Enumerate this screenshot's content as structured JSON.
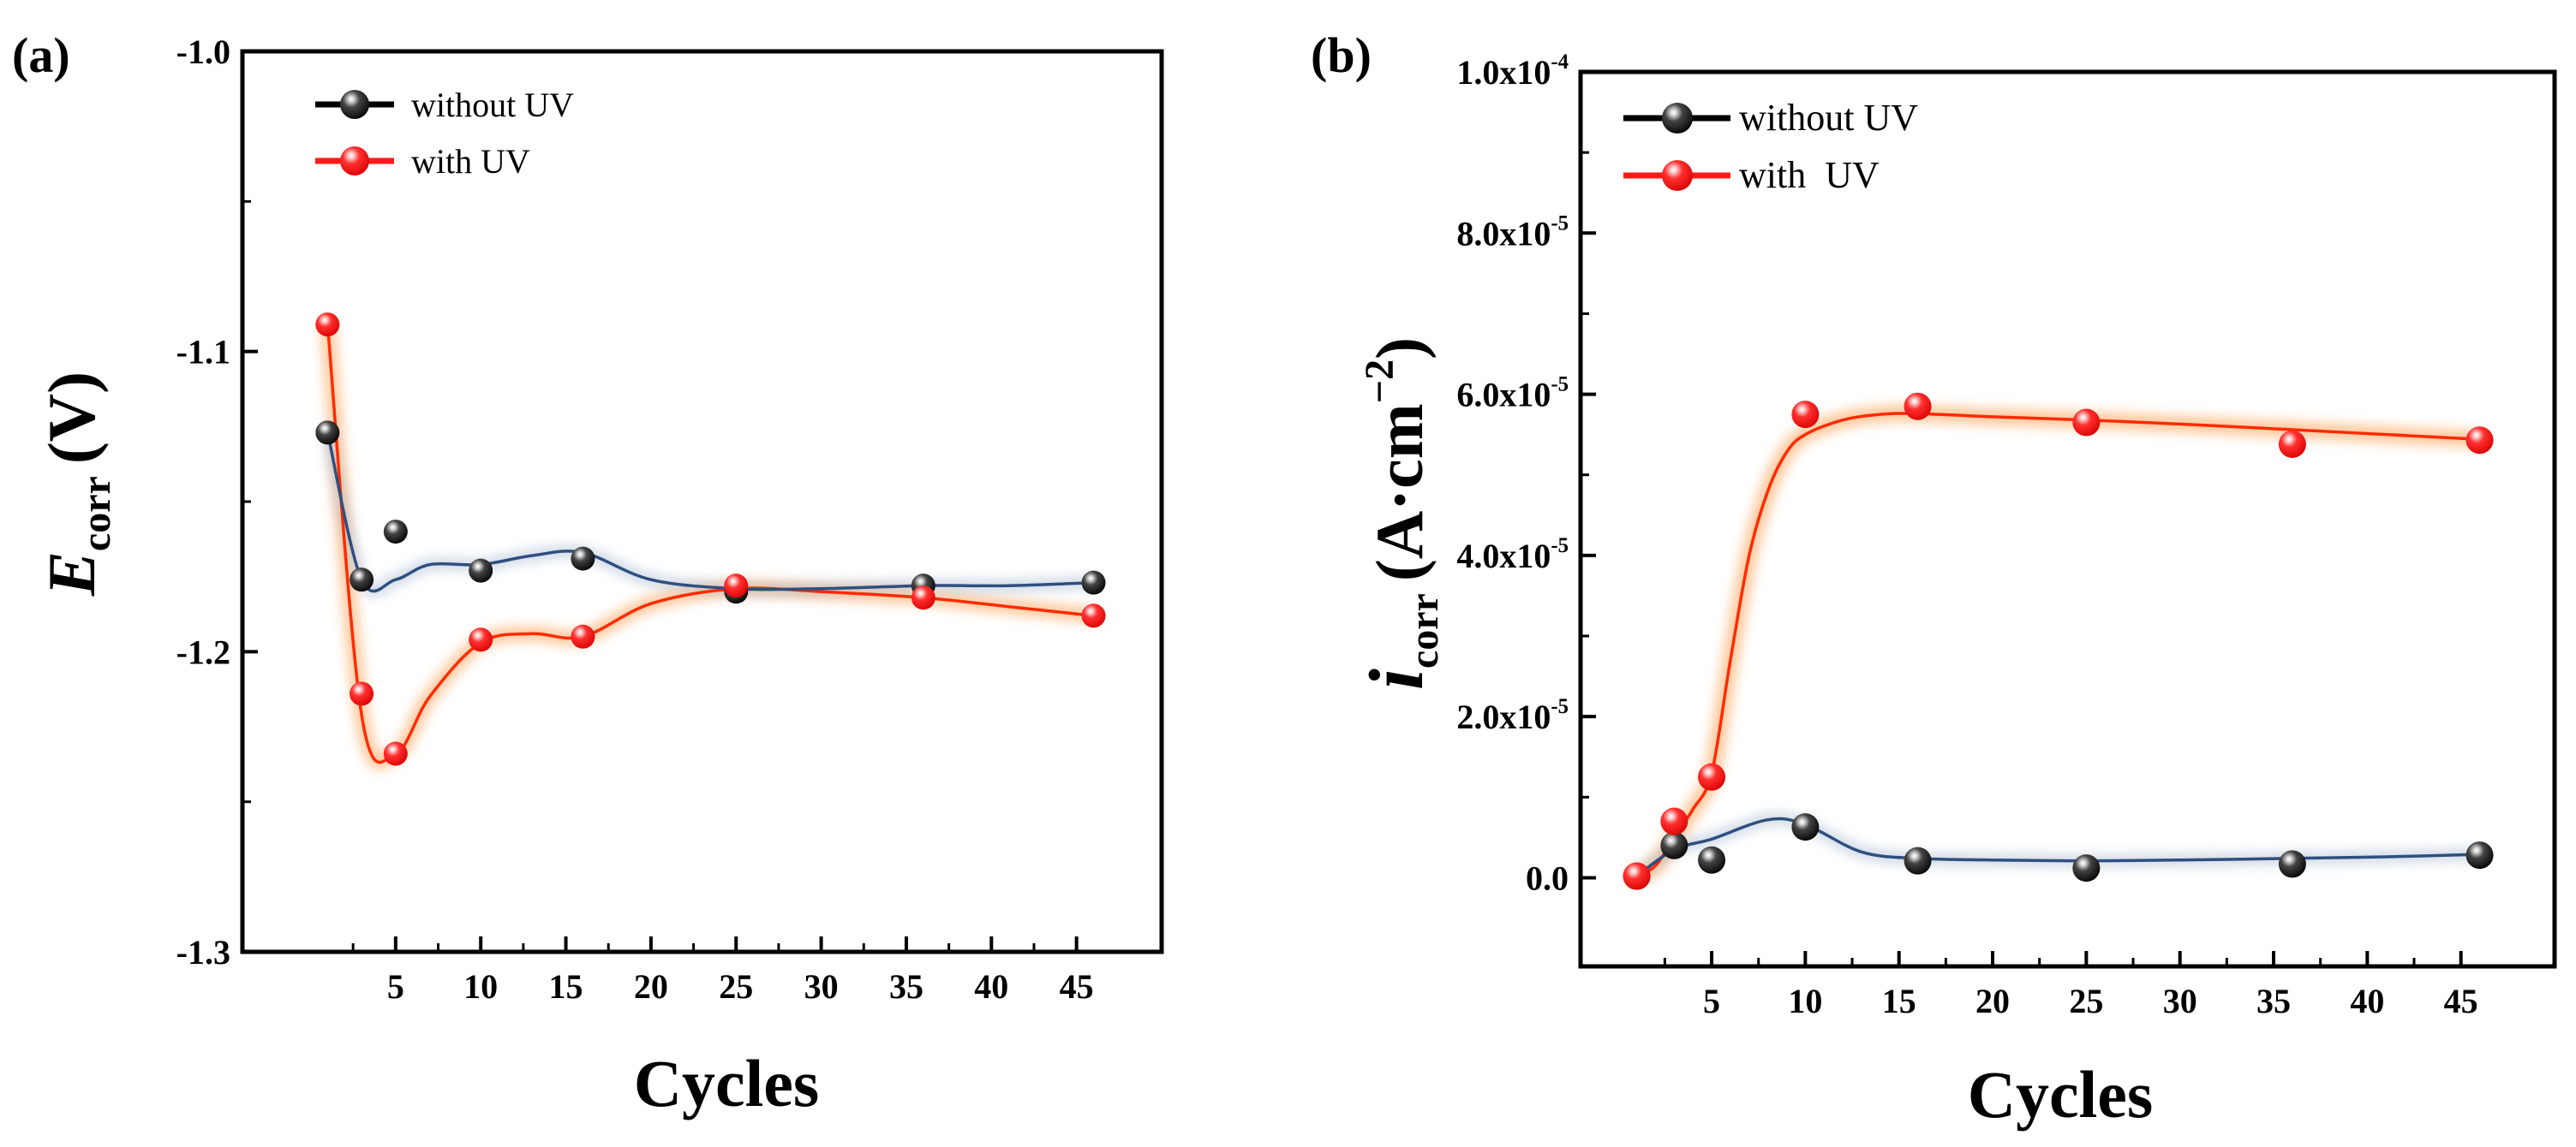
{
  "colors": {
    "without": "#000000",
    "with": "#ff1a1a",
    "fit_without": "#2f4f7f",
    "fit_with": "#ff2a00",
    "glow": "#ffb070"
  },
  "chart_data": [
    {
      "type": "line",
      "panel_label": "(a)",
      "title": "",
      "ylabel_main": "E",
      "ylabel_sub": "corr",
      "ylabel_unit": "(V)",
      "xlabel": "Cycles",
      "xlim": [
        -4,
        50
      ],
      "ylim": [
        -1.3,
        -1.0
      ],
      "x_ticks": [
        5,
        10,
        15,
        20,
        25,
        30,
        35,
        40,
        45
      ],
      "x_tick_labels": [
        "5",
        "10",
        "15",
        "20",
        "25",
        "30",
        "35",
        "40",
        "45"
      ],
      "y_ticks": [
        -1.3,
        -1.2,
        -1.1,
        -1.0
      ],
      "y_tick_labels": [
        "-1.3",
        "-1.2",
        "-1.1",
        "-1.0"
      ],
      "legend_position": "top-left",
      "series": [
        {
          "name": "without UV",
          "x": [
            1,
            3,
            5,
            10,
            16,
            25,
            36,
            46
          ],
          "values": [
            -1.127,
            -1.176,
            -1.16,
            -1.173,
            -1.169,
            -1.18,
            -1.178,
            -1.177
          ],
          "fit_x": [
            1,
            3,
            5,
            7,
            10,
            13,
            16,
            20,
            25,
            30,
            36,
            41,
            46
          ],
          "fit_values": [
            -1.127,
            -1.176,
            -1.176,
            -1.171,
            -1.171,
            -1.168,
            -1.167,
            -1.176,
            -1.179,
            -1.179,
            -1.178,
            -1.178,
            -1.177
          ]
        },
        {
          "name": "with UV",
          "x": [
            1,
            3,
            5,
            10,
            16,
            25,
            36,
            46
          ],
          "values": [
            -1.091,
            -1.214,
            -1.234,
            -1.196,
            -1.195,
            -1.178,
            -1.182,
            -1.188
          ],
          "fit_x": [
            1,
            3,
            5,
            7,
            10,
            13,
            16,
            20,
            25,
            30,
            36,
            41,
            46
          ],
          "fit_values": [
            -1.091,
            -1.221,
            -1.234,
            -1.215,
            -1.197,
            -1.194,
            -1.195,
            -1.184,
            -1.179,
            -1.18,
            -1.182,
            -1.185,
            -1.188
          ]
        }
      ]
    },
    {
      "type": "line",
      "panel_label": "(b)",
      "title": "",
      "ylabel_main": "i",
      "ylabel_sub": "corr",
      "ylabel_unit": "(A·cm",
      "ylabel_exp": "−2",
      "ylabel_close": ")",
      "xlabel": "Cycles",
      "xlim": [
        -2,
        50
      ],
      "ylim": [
        -1.1e-05,
        0.0001
      ],
      "x_ticks": [
        5,
        10,
        15,
        20,
        25,
        30,
        35,
        40,
        45
      ],
      "x_tick_labels": [
        "5",
        "10",
        "15",
        "20",
        "25",
        "30",
        "35",
        "40",
        "45"
      ],
      "y_ticks": [
        0,
        2e-05,
        4e-05,
        6e-05,
        8e-05,
        0.0001
      ],
      "y_tick_mantissa": [
        "0.0",
        "2.0x10",
        "4.0x10",
        "6.0x10",
        "8.0x10",
        "1.0x10"
      ],
      "y_tick_exponent": [
        "",
        "-5",
        "-5",
        "-5",
        "-5",
        "-4"
      ],
      "legend_position": "top-left",
      "series": [
        {
          "name": "without UV",
          "x": [
            1,
            3,
            5,
            10,
            16,
            25,
            36,
            46
          ],
          "values": [
            2e-07,
            4e-06,
            2.2e-06,
            6.3e-06,
            2.1e-06,
            1.2e-06,
            1.7e-06,
            2.8e-06
          ],
          "fit_x": [
            1,
            3,
            5,
            8,
            10,
            13,
            16,
            20,
            25,
            30,
            36,
            41,
            46
          ],
          "fit_values": [
            2e-07,
            3.5e-06,
            4.8e-06,
            7.2e-06,
            6.6e-06,
            3.2e-06,
            2.4e-06,
            2.2e-06,
            2.1e-06,
            2.2e-06,
            2.4e-06,
            2.6e-06,
            2.9e-06
          ]
        },
        {
          "name": "with  UV",
          "x": [
            1,
            3,
            5,
            10,
            16,
            25,
            36,
            46
          ],
          "values": [
            2e-07,
            7e-06,
            1.25e-05,
            5.75e-05,
            5.85e-05,
            5.65e-05,
            5.38e-05,
            5.43e-05
          ],
          "fit_x": [
            1,
            2,
            3,
            4,
            5,
            6,
            7,
            8,
            9,
            10,
            12,
            14,
            16,
            20,
            25,
            30,
            36,
            41,
            46
          ],
          "fit_values": [
            2e-07,
            1.5e-06,
            5e-06,
            8.5e-06,
            1.3e-05,
            2.7e-05,
            4e-05,
            4.8e-05,
            5.28e-05,
            5.5e-05,
            5.68e-05,
            5.75e-05,
            5.76e-05,
            5.72e-05,
            5.68e-05,
            5.63e-05,
            5.56e-05,
            5.5e-05,
            5.44e-05
          ]
        }
      ]
    }
  ]
}
